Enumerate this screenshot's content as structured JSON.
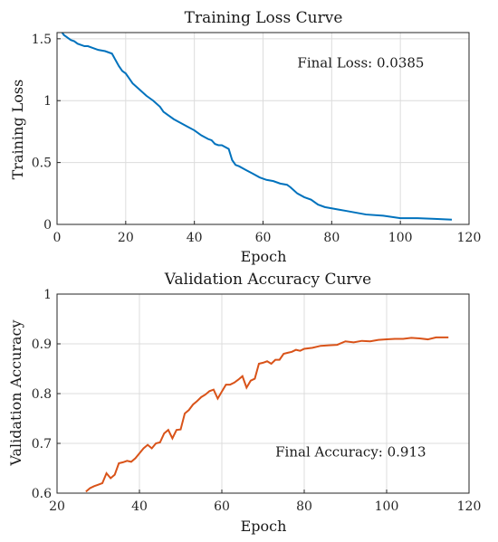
{
  "chart_data": [
    {
      "type": "line",
      "title": "Training Loss Curve",
      "xlabel": "Epoch",
      "ylabel": "Training Loss",
      "xlim": [
        0,
        120
      ],
      "ylim": [
        0,
        1.55
      ],
      "xticks": [
        0,
        20,
        40,
        60,
        80,
        100,
        120
      ],
      "xtick_labels": [
        "0",
        "20",
        "40",
        "60",
        "80",
        "100",
        "120"
      ],
      "yticks": [
        0,
        0.5,
        1,
        1.5
      ],
      "ytick_labels": [
        "0",
        "0.5",
        "1",
        "1.5"
      ],
      "grid": true,
      "line_color": "#0072BD",
      "annotation": "Final Loss: 0.0385",
      "annotation_pos": [
        70,
        1.27
      ],
      "series": [
        {
          "x": [
            1,
            2,
            3,
            4,
            5,
            6,
            7,
            8,
            9,
            10,
            12,
            14,
            16,
            17,
            18,
            19,
            20,
            21,
            22,
            24,
            26,
            28,
            30,
            31,
            32,
            34,
            36,
            38,
            40,
            42,
            44,
            45,
            46,
            47,
            48,
            50,
            51,
            52,
            53,
            55,
            57,
            59,
            61,
            63,
            65,
            67,
            68,
            70,
            72,
            74,
            76,
            78,
            80,
            82,
            84,
            86,
            88,
            90,
            95,
            100,
            105,
            110,
            115
          ],
          "y": [
            1.57,
            1.53,
            1.51,
            1.49,
            1.48,
            1.46,
            1.45,
            1.44,
            1.44,
            1.43,
            1.41,
            1.4,
            1.38,
            1.33,
            1.28,
            1.24,
            1.22,
            1.18,
            1.14,
            1.09,
            1.04,
            1.0,
            0.95,
            0.91,
            0.89,
            0.85,
            0.82,
            0.79,
            0.76,
            0.72,
            0.69,
            0.68,
            0.65,
            0.64,
            0.64,
            0.61,
            0.52,
            0.48,
            0.47,
            0.44,
            0.41,
            0.38,
            0.36,
            0.35,
            0.33,
            0.32,
            0.3,
            0.25,
            0.22,
            0.2,
            0.16,
            0.14,
            0.13,
            0.12,
            0.11,
            0.1,
            0.09,
            0.08,
            0.07,
            0.05,
            0.05,
            0.045,
            0.0385
          ]
        }
      ]
    },
    {
      "type": "line",
      "title": "Validation Accuracy Curve",
      "xlabel": "Epoch",
      "ylabel": "Validation Accuracy",
      "xlim": [
        20,
        120
      ],
      "ylim": [
        0.6,
        1
      ],
      "xticks": [
        20,
        40,
        60,
        80,
        100,
        120
      ],
      "xtick_labels": [
        "20",
        "40",
        "60",
        "80",
        "100",
        "120"
      ],
      "yticks": [
        0.6,
        0.7,
        0.8,
        0.9,
        1
      ],
      "ytick_labels": [
        "0.6",
        "0.7",
        "0.8",
        "0.9",
        "1"
      ],
      "grid": true,
      "line_color": "#D95319",
      "annotation": "Final Accuracy: 0.913",
      "annotation_pos": [
        73,
        0.674
      ],
      "series": [
        {
          "x": [
            27,
            28,
            29,
            30,
            31,
            32,
            33,
            34,
            35,
            36,
            37,
            38,
            39,
            40,
            41,
            42,
            43,
            44,
            45,
            46,
            47,
            48,
            49,
            50,
            51,
            52,
            53,
            54,
            55,
            56,
            57,
            58,
            59,
            60,
            61,
            62,
            63,
            64,
            65,
            66,
            67,
            68,
            69,
            70,
            71,
            72,
            73,
            74,
            75,
            76,
            77,
            78,
            79,
            80,
            82,
            84,
            86,
            88,
            90,
            92,
            94,
            96,
            98,
            100,
            102,
            104,
            106,
            108,
            110,
            112,
            115
          ],
          "y": [
            0.603,
            0.61,
            0.614,
            0.617,
            0.62,
            0.64,
            0.63,
            0.637,
            0.66,
            0.662,
            0.665,
            0.663,
            0.67,
            0.68,
            0.69,
            0.697,
            0.69,
            0.7,
            0.702,
            0.72,
            0.727,
            0.71,
            0.727,
            0.728,
            0.76,
            0.767,
            0.778,
            0.785,
            0.793,
            0.798,
            0.805,
            0.808,
            0.79,
            0.804,
            0.818,
            0.818,
            0.822,
            0.828,
            0.835,
            0.812,
            0.826,
            0.83,
            0.86,
            0.862,
            0.865,
            0.86,
            0.868,
            0.868,
            0.88,
            0.882,
            0.884,
            0.888,
            0.886,
            0.89,
            0.892,
            0.896,
            0.897,
            0.898,
            0.905,
            0.903,
            0.906,
            0.905,
            0.908,
            0.909,
            0.91,
            0.91,
            0.912,
            0.911,
            0.909,
            0.913,
            0.913
          ]
        }
      ]
    }
  ]
}
